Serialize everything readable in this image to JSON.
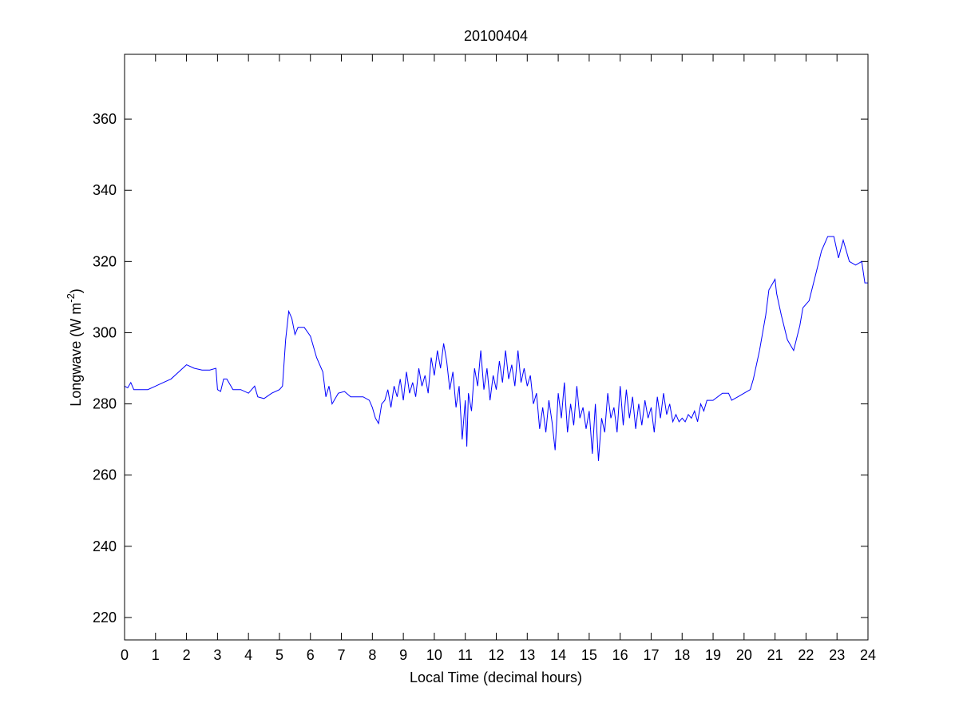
{
  "chart_data": {
    "type": "line",
    "title": "20100404",
    "xlabel": "Local Time (decimal hours)",
    "ylabel": {
      "text": "Longwave (W m",
      "superscript": "-2",
      "suffix": ")"
    },
    "xlim": [
      0,
      24
    ],
    "ylim": [
      213.7,
      378.2
    ],
    "xticks": [
      0,
      1,
      2,
      3,
      4,
      5,
      6,
      7,
      8,
      9,
      10,
      11,
      12,
      13,
      14,
      15,
      16,
      17,
      18,
      19,
      20,
      21,
      22,
      23,
      24
    ],
    "yticks": [
      220,
      240,
      260,
      280,
      300,
      320,
      340,
      360
    ],
    "grid": false,
    "line_color": "#0000ff",
    "series": [
      {
        "x": [
          0,
          0.1,
          0.2,
          0.3,
          0.5,
          0.75,
          1,
          1.25,
          1.5,
          1.75,
          2,
          2.25,
          2.5,
          2.75,
          2.95,
          3.0,
          3.1,
          3.2,
          3.3,
          3.5,
          3.75,
          4,
          4.2,
          4.3,
          4.5,
          4.75,
          5,
          5.1,
          5.2,
          5.3,
          5.4,
          5.5,
          5.6,
          5.8,
          6,
          6.2,
          6.4,
          6.5,
          6.6,
          6.7,
          6.9,
          7.1,
          7.3,
          7.5,
          7.7,
          7.9,
          8.0,
          8.1,
          8.2,
          8.3,
          8.4,
          8.5,
          8.6,
          8.7,
          8.8,
          8.9,
          9.0,
          9.1,
          9.2,
          9.3,
          9.4,
          9.5,
          9.6,
          9.7,
          9.8,
          9.9,
          10.0,
          10.1,
          10.2,
          10.3,
          10.4,
          10.5,
          10.6,
          10.7,
          10.8,
          10.9,
          11.0,
          11.05,
          11.1,
          11.2,
          11.3,
          11.4,
          11.5,
          11.6,
          11.7,
          11.8,
          11.9,
          12.0,
          12.1,
          12.2,
          12.3,
          12.4,
          12.5,
          12.6,
          12.7,
          12.8,
          12.9,
          13.0,
          13.1,
          13.2,
          13.3,
          13.4,
          13.5,
          13.6,
          13.7,
          13.8,
          13.9,
          14.0,
          14.1,
          14.2,
          14.3,
          14.4,
          14.5,
          14.6,
          14.7,
          14.8,
          14.9,
          15.0,
          15.1,
          15.2,
          15.3,
          15.4,
          15.5,
          15.6,
          15.7,
          15.8,
          15.9,
          16.0,
          16.1,
          16.2,
          16.3,
          16.4,
          16.5,
          16.6,
          16.7,
          16.8,
          16.9,
          17.0,
          17.1,
          17.2,
          17.3,
          17.4,
          17.5,
          17.6,
          17.7,
          17.8,
          17.9,
          18.0,
          18.1,
          18.2,
          18.3,
          18.4,
          18.5,
          18.6,
          18.7,
          18.8,
          19,
          19.3,
          19.5,
          19.6,
          19.8,
          20,
          20.2,
          20.3,
          20.5,
          20.7,
          20.8,
          21.0,
          21.05,
          21.2,
          21.4,
          21.6,
          21.8,
          21.9,
          22.1,
          22.3,
          22.5,
          22.7,
          22.9,
          23.05,
          23.2,
          23.4,
          23.6,
          23.8,
          23.9,
          24
        ],
        "y": [
          285,
          284.5,
          286,
          284,
          284,
          284,
          285,
          286,
          287,
          289,
          291,
          290,
          289.5,
          289.5,
          290,
          284,
          283.5,
          287,
          287,
          284,
          284,
          283,
          285,
          282,
          281.5,
          283,
          284,
          285,
          298,
          306,
          304,
          299.5,
          301.5,
          301.5,
          299,
          293,
          289,
          282,
          285,
          280,
          283,
          283.5,
          282,
          282,
          282,
          281,
          279,
          276,
          274.5,
          280,
          281,
          284,
          279,
          285,
          282,
          287,
          281,
          289,
          283,
          286,
          282,
          290,
          285,
          288,
          283,
          293,
          288,
          295,
          290,
          297,
          292,
          284,
          289,
          279,
          285,
          270,
          281,
          268,
          283,
          278,
          290,
          285,
          295,
          284,
          290,
          281,
          288,
          284,
          292,
          286,
          295,
          287,
          291,
          285,
          295,
          286,
          290,
          285,
          288,
          280,
          283,
          273,
          279,
          272,
          281,
          275,
          267,
          283,
          276,
          286,
          272,
          280,
          274,
          285,
          276,
          279,
          273,
          278,
          266,
          280,
          264,
          276,
          272,
          283,
          276,
          279,
          272,
          285,
          274,
          284,
          276,
          282,
          273,
          280,
          274,
          281,
          276,
          279,
          272,
          282,
          276,
          283,
          277,
          280,
          275,
          277,
          275,
          276,
          275,
          277,
          276,
          278,
          275,
          280,
          278,
          281,
          281,
          283,
          283,
          281,
          282,
          283,
          284,
          287,
          295,
          305,
          312,
          315,
          311,
          305,
          298,
          295,
          302,
          307,
          309,
          316,
          323,
          327,
          327,
          321,
          326,
          320,
          319,
          320,
          314,
          314
        ]
      }
    ]
  }
}
